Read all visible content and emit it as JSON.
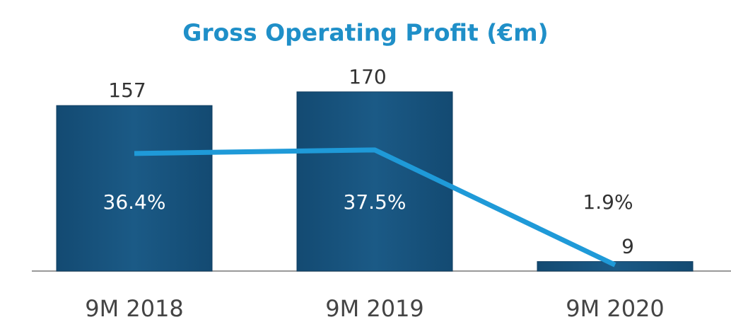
{
  "chart_data": {
    "type": "bar",
    "title": "Gross Operating Profit (€m)",
    "categories": [
      "9M 2018",
      "9M 2019",
      "9M 2020"
    ],
    "series": [
      {
        "type": "bar",
        "color": "#1b5a86",
        "values": [
          157,
          170,
          9
        ]
      },
      {
        "type": "line",
        "color": "#1f9ad8",
        "axis": "y2",
        "values": [
          36.4,
          37.5,
          1.9
        ],
        "value_labels": [
          "36.4%",
          "37.5%",
          "1.9%"
        ]
      }
    ],
    "ylim": [
      0,
      190
    ],
    "y2lim": [
      0,
      62
    ]
  }
}
